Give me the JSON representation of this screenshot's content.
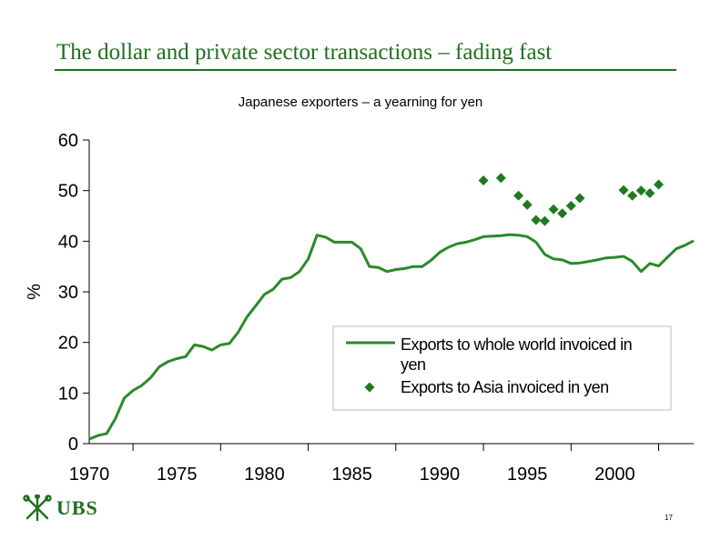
{
  "header": {
    "title": "The dollar and private sector transactions – fading fast"
  },
  "footer": {
    "logo_text": "UBS",
    "page_number": "17"
  },
  "colors": {
    "accent": "#1f6f1f",
    "series": "#2a8a2a"
  },
  "chart_data": {
    "type": "line",
    "title": "Japanese exporters – a yearning for yen",
    "ylabel": "%",
    "xlim": [
      1970,
      2004.5
    ],
    "ylim": [
      0,
      60
    ],
    "y_ticks": [
      0,
      10,
      20,
      30,
      40,
      50,
      60
    ],
    "x_ticks": [
      1970,
      1975,
      1980,
      1985,
      1990,
      1995,
      2000
    ],
    "grid": false,
    "legend_position": "lower-right",
    "series": [
      {
        "name": "Exports to whole world invoiced in yen",
        "kind": "line",
        "x": [
          1970,
          1970.5,
          1971,
          1971.5,
          1972,
          1972.5,
          1973,
          1973.5,
          1974,
          1974.5,
          1975,
          1975.5,
          1976,
          1976.5,
          1977,
          1977.5,
          1978,
          1978.5,
          1979,
          1979.5,
          1980,
          1980.5,
          1981,
          1981.5,
          1982,
          1982.5,
          1983,
          1983.5,
          1984,
          1984.5,
          1985,
          1985.5,
          1986,
          1986.5,
          1987,
          1987.5,
          1988,
          1988.5,
          1989,
          1989.5,
          1990,
          1990.5,
          1991,
          1991.5,
          1992,
          1992.5,
          1993,
          1993.5,
          1994,
          1994.5,
          1995,
          1995.5,
          1996,
          1996.5,
          1997,
          1997.5,
          1998,
          1998.5,
          1999,
          1999.5,
          2000,
          2000.5,
          2001,
          2001.5,
          2002,
          2002.5,
          2003,
          2003.5,
          2004,
          2004.5
        ],
        "y": [
          0.9,
          1.6,
          2.0,
          5.0,
          9.0,
          10.5,
          11.5,
          13.0,
          15.2,
          16.2,
          16.8,
          17.2,
          19.5,
          19.2,
          18.5,
          19.5,
          19.8,
          22.0,
          25.0,
          27.2,
          29.5,
          30.5,
          32.5,
          32.8,
          34.0,
          36.5,
          41.2,
          40.8,
          39.8,
          39.8,
          39.8,
          38.5,
          35.0,
          34.8,
          34.0,
          34.4,
          34.6,
          35.0,
          35.0,
          36.2,
          37.8,
          38.8,
          39.5,
          39.8,
          40.3,
          40.9,
          41.0,
          41.1,
          41.3,
          41.2,
          40.9,
          39.8,
          37.4,
          36.5,
          36.3,
          35.6,
          35.7,
          36.0,
          36.3,
          36.7,
          36.8,
          37.0,
          36.0,
          34.0,
          35.6,
          35.1,
          36.8,
          38.5,
          39.2,
          40.1
        ],
        "y_tail": 40.1
      },
      {
        "name": "Exports to Asia invoiced in yen",
        "kind": "marker",
        "x": [
          1992.5,
          1993.5,
          1994.5,
          1995.0,
          1995.5,
          1996.0,
          1996.5,
          1997.0,
          1997.5,
          1998.0,
          2000.5,
          2001.0,
          2001.5,
          2002.0,
          2002.5
        ],
        "y": [
          52.0,
          52.5,
          49.0,
          47.2,
          44.2,
          44.0,
          46.3,
          45.5,
          47.0,
          48.5,
          50.1,
          49.0,
          50.0,
          49.5,
          51.2
        ]
      }
    ]
  }
}
